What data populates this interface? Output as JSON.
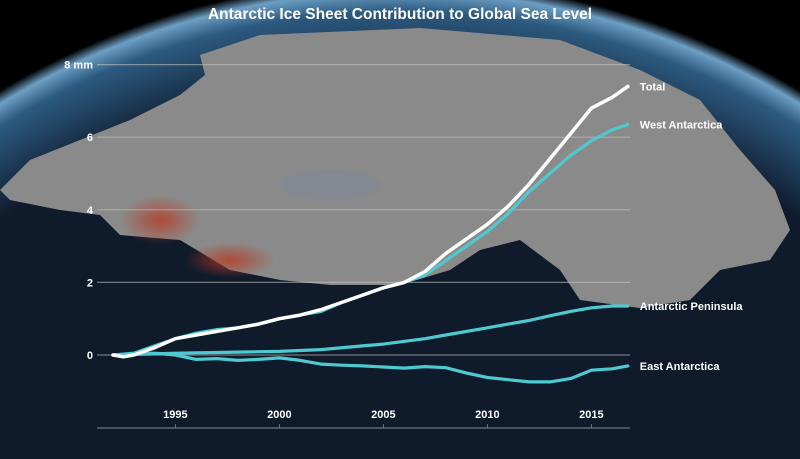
{
  "chart_data": {
    "type": "line",
    "title": "Antarctic Ice Sheet Contribution to Global Sea Level",
    "xlabel": "",
    "ylabel": "",
    "xlim": [
      1991.3,
      2017.0
    ],
    "ylim": [
      -1.0,
      8.4
    ],
    "x_ticks": [
      "1995",
      "2000",
      "2005",
      "2010",
      "2015"
    ],
    "x_tick_values": [
      1995,
      2000,
      2005,
      2010,
      2015
    ],
    "y_ticks": [
      "0",
      "2",
      "4",
      "6",
      "8 mm"
    ],
    "y_tick_values": [
      0,
      2,
      4,
      6,
      8
    ],
    "grid": true,
    "legend": "direct labels at line ends (right)",
    "series": [
      {
        "name": "Total",
        "color": "#ffffff",
        "x": [
          1992,
          1992.5,
          1993,
          1994,
          1995,
          1996,
          1997,
          1998,
          1999,
          2000,
          2001,
          2002,
          2003,
          2004,
          2005,
          2006,
          2007,
          2008,
          2009,
          2010,
          2011,
          2012,
          2013,
          2014,
          2015,
          2016,
          2016.75
        ],
        "values": [
          0,
          -0.05,
          0,
          0.2,
          0.45,
          0.55,
          0.65,
          0.75,
          0.85,
          1.0,
          1.1,
          1.25,
          1.45,
          1.65,
          1.85,
          2.0,
          2.3,
          2.8,
          3.2,
          3.6,
          4.1,
          4.7,
          5.4,
          6.1,
          6.8,
          7.1,
          7.4
        ]
      },
      {
        "name": "West Antarctica",
        "color": "#4fc9d0",
        "x": [
          1992,
          1993,
          1994,
          1995,
          1996,
          1997,
          1998,
          1999,
          2000,
          2001,
          2002,
          2003,
          2004,
          2005,
          2006,
          2007,
          2008,
          2009,
          2010,
          2011,
          2012,
          2013,
          2014,
          2015,
          2016,
          2016.75
        ],
        "values": [
          0,
          0.05,
          0.25,
          0.45,
          0.6,
          0.7,
          0.75,
          0.85,
          1.0,
          1.1,
          1.2,
          1.45,
          1.65,
          1.85,
          2.0,
          2.2,
          2.6,
          3.0,
          3.4,
          3.9,
          4.5,
          5.0,
          5.5,
          5.9,
          6.2,
          6.35
        ]
      },
      {
        "name": "Antarctic Peninsula",
        "color": "#4fc9d0",
        "x": [
          1992,
          1995,
          1998,
          2000,
          2002,
          2004,
          2005,
          2007,
          2008,
          2010,
          2011,
          2012,
          2013,
          2014,
          2015,
          2016,
          2016.75
        ],
        "values": [
          0,
          0.05,
          0.08,
          0.1,
          0.15,
          0.25,
          0.3,
          0.45,
          0.55,
          0.75,
          0.85,
          0.95,
          1.08,
          1.2,
          1.3,
          1.35,
          1.35
        ]
      },
      {
        "name": "East Antarctica",
        "color": "#4fc9d0",
        "x": [
          1992,
          1994,
          1995,
          1996,
          1997,
          1998,
          1999,
          2000,
          2001,
          2002,
          2003,
          2004,
          2005,
          2006,
          2007,
          2008,
          2009,
          2010,
          2011,
          2012,
          2013,
          2014,
          2015,
          2016,
          2016.75
        ],
        "values": [
          0,
          0.05,
          0.0,
          -0.12,
          -0.1,
          -0.15,
          -0.12,
          -0.08,
          -0.15,
          -0.25,
          -0.28,
          -0.3,
          -0.33,
          -0.36,
          -0.32,
          -0.35,
          -0.5,
          -0.62,
          -0.68,
          -0.74,
          -0.74,
          -0.65,
          -0.42,
          -0.38,
          -0.3
        ]
      }
    ]
  }
}
